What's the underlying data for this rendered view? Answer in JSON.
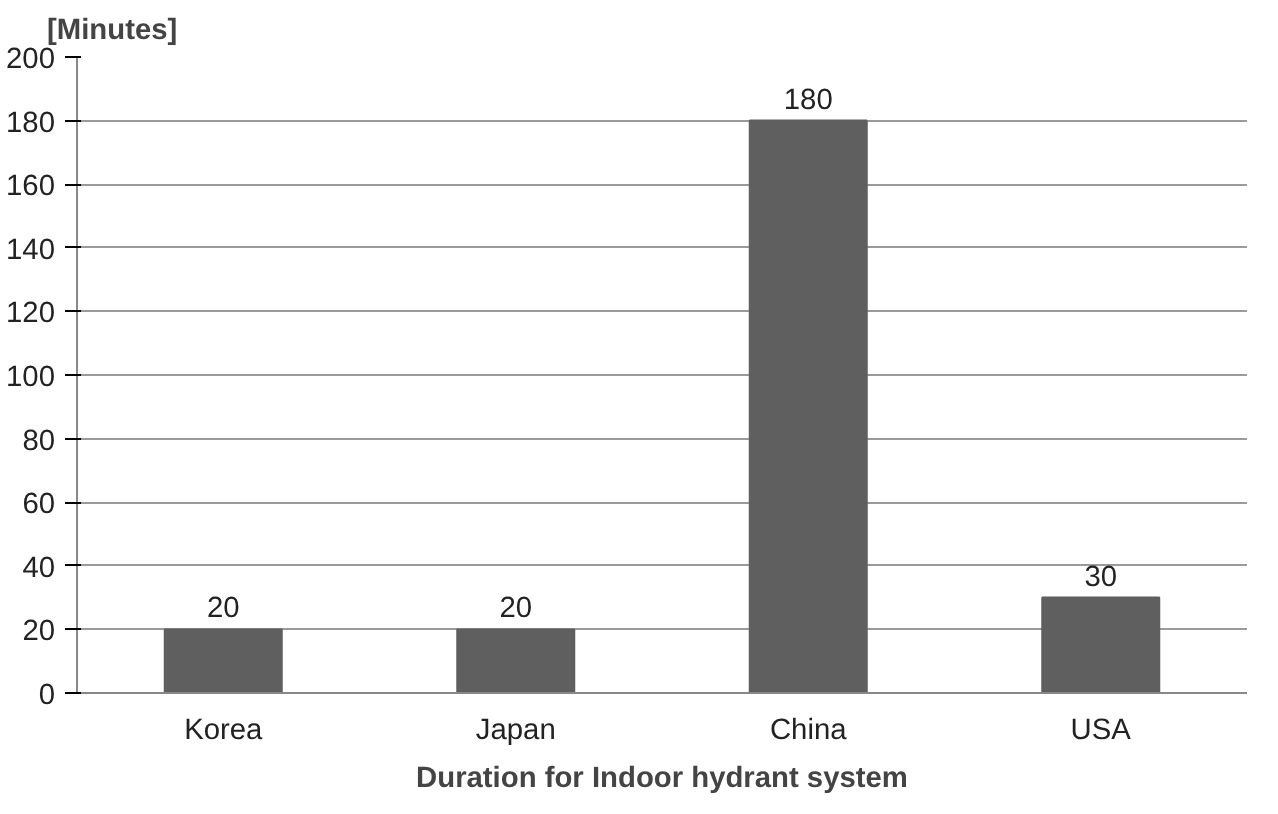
{
  "chart_data": {
    "type": "bar",
    "ylabel": "[Minutes]",
    "xlabel": "Duration for Indoor hydrant system",
    "categories": [
      "Korea",
      "Japan",
      "China",
      "USA"
    ],
    "values": [
      20,
      20,
      180,
      30
    ],
    "color": "#5f5f5f",
    "ylim": [
      0,
      200
    ],
    "yticks": [
      0,
      20,
      40,
      60,
      80,
      100,
      120,
      140,
      160,
      180,
      200
    ],
    "grid": "y",
    "data_labels": true
  }
}
